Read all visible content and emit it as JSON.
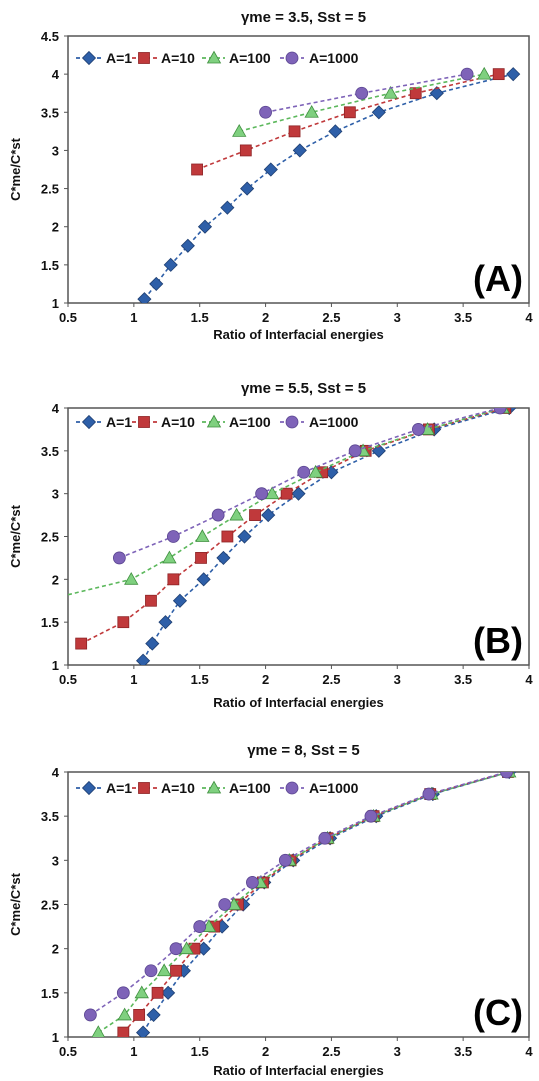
{
  "chart_data": [
    {
      "type": "line",
      "panel_label": "(A)",
      "title": "γme = 3.5, Sst = 5",
      "xlabel": "Ratio of Interfacial energies",
      "ylabel": "C*me/C*st",
      "xlim": [
        0.5,
        4
      ],
      "ylim": [
        1,
        4.5
      ],
      "xticks": [
        "0.5",
        "1",
        "1.5",
        "2",
        "2.5",
        "3",
        "3.5",
        "4"
      ],
      "yticks": [
        "1",
        "1.5",
        "2",
        "2.5",
        "3",
        "3.5",
        "4",
        "4.5"
      ],
      "grid": false,
      "legend": "top-left",
      "series": [
        {
          "name": "A=1",
          "color": "#2e5fa8",
          "marker": "diamond",
          "x": [
            1.08,
            1.17,
            1.28,
            1.41,
            1.54,
            1.71,
            1.86,
            2.04,
            2.26,
            2.53,
            2.86,
            3.3,
            3.88
          ],
          "y": [
            1.05,
            1.25,
            1.5,
            1.75,
            2.0,
            2.25,
            2.5,
            2.75,
            3.0,
            3.25,
            3.5,
            3.75,
            4.0
          ]
        },
        {
          "name": "A=10",
          "color": "#c0393b",
          "marker": "square",
          "x": [
            1.48,
            1.85,
            2.22,
            2.64,
            3.14,
            3.77
          ],
          "y": [
            2.75,
            3.0,
            3.25,
            3.5,
            3.75,
            4.0
          ]
        },
        {
          "name": "A=100",
          "color": "#5cb85c",
          "marker": "triangle",
          "x": [
            1.8,
            2.35,
            2.95,
            3.66
          ],
          "y": [
            3.25,
            3.5,
            3.75,
            4.0
          ]
        },
        {
          "name": "A=1000",
          "color": "#7e63b8",
          "marker": "circle",
          "x": [
            2.0,
            2.73,
            3.53
          ],
          "y": [
            3.5,
            3.75,
            4.0
          ]
        }
      ]
    },
    {
      "type": "line",
      "panel_label": "(B)",
      "title": "γme = 5.5, Sst = 5",
      "xlabel": "Ratio of Interfacial energies",
      "ylabel": "C*me/C*st",
      "xlim": [
        0.5,
        4
      ],
      "ylim": [
        1,
        4
      ],
      "xticks": [
        "0.5",
        "1",
        "1.5",
        "2",
        "2.5",
        "3",
        "3.5",
        "4"
      ],
      "yticks": [
        "1",
        "1.5",
        "2",
        "2.5",
        "3",
        "3.5",
        "4"
      ],
      "grid": false,
      "legend": "top-left",
      "series": [
        {
          "name": "A=1",
          "color": "#2e5fa8",
          "marker": "diamond",
          "x": [
            1.07,
            1.14,
            1.24,
            1.35,
            1.53,
            1.68,
            1.84,
            2.02,
            2.25,
            2.5,
            2.86,
            3.28,
            3.85
          ],
          "y": [
            1.05,
            1.25,
            1.5,
            1.75,
            2.0,
            2.25,
            2.5,
            2.75,
            3.0,
            3.25,
            3.5,
            3.75,
            4.0
          ]
        },
        {
          "name": "A=10",
          "color": "#c0393b",
          "marker": "square",
          "x": [
            0.6,
            0.92,
            1.13,
            1.3,
            1.51,
            1.71,
            1.92,
            2.16,
            2.43,
            2.76,
            3.24,
            3.82
          ],
          "y": [
            1.25,
            1.5,
            1.75,
            2.0,
            2.25,
            2.5,
            2.75,
            3.0,
            3.25,
            3.5,
            3.75,
            4.0
          ]
        },
        {
          "name": "A=100",
          "color": "#5cb85c",
          "marker": "triangle",
          "x": [
            0.98,
            1.27,
            1.52,
            1.78,
            2.05,
            2.38,
            2.74,
            3.23,
            3.8
          ],
          "y": [
            2.0,
            2.25,
            2.5,
            2.75,
            3.0,
            3.25,
            3.5,
            3.75,
            4.0
          ]
        },
        {
          "name": "A=1000",
          "color": "#7e63b8",
          "marker": "circle",
          "x": [
            0.89,
            1.3,
            1.64,
            1.97,
            2.29,
            2.68,
            3.16,
            3.78
          ],
          "y": [
            2.25,
            2.5,
            2.75,
            3.0,
            3.25,
            3.5,
            3.75,
            4.0
          ]
        }
      ]
    },
    {
      "type": "line",
      "panel_label": "(C)",
      "title": "γme = 8, Sst = 5",
      "xlabel": "Ratio of Interfacial energies",
      "ylabel": "C*me/C*st",
      "xlim": [
        0.5,
        4
      ],
      "ylim": [
        1,
        4
      ],
      "xticks": [
        "0.5",
        "1",
        "1.5",
        "2",
        "2.5",
        "3",
        "3.5",
        "4"
      ],
      "yticks": [
        "1",
        "1.5",
        "2",
        "2.5",
        "3",
        "3.5",
        "4"
      ],
      "grid": false,
      "legend": "top-left",
      "series": [
        {
          "name": "A=1",
          "color": "#2e5fa8",
          "marker": "diamond",
          "x": [
            1.07,
            1.15,
            1.26,
            1.38,
            1.53,
            1.67,
            1.83,
            1.99,
            2.21,
            2.49,
            2.84,
            3.27,
            3.85
          ],
          "y": [
            1.05,
            1.25,
            1.5,
            1.75,
            2.0,
            2.25,
            2.5,
            2.75,
            3.0,
            3.25,
            3.5,
            3.75,
            4.0
          ]
        },
        {
          "name": "A=10",
          "color": "#c0393b",
          "marker": "square",
          "x": [
            0.92,
            1.04,
            1.18,
            1.32,
            1.46,
            1.61,
            1.79,
            1.98,
            2.19,
            2.47,
            2.82,
            3.25,
            3.84
          ],
          "y": [
            1.05,
            1.25,
            1.5,
            1.75,
            2.0,
            2.25,
            2.5,
            2.75,
            3.0,
            3.25,
            3.5,
            3.75,
            4.0
          ]
        },
        {
          "name": "A=100",
          "color": "#5cb85c",
          "marker": "triangle",
          "x": [
            0.73,
            0.93,
            1.06,
            1.23,
            1.4,
            1.57,
            1.76,
            1.96,
            2.18,
            2.47,
            2.82,
            3.26,
            3.85
          ],
          "y": [
            1.05,
            1.25,
            1.5,
            1.75,
            2.0,
            2.25,
            2.5,
            2.75,
            3.0,
            3.25,
            3.5,
            3.75,
            4.0
          ]
        },
        {
          "name": "A=1000",
          "color": "#7e63b8",
          "marker": "circle",
          "x": [
            0.67,
            0.92,
            1.13,
            1.32,
            1.5,
            1.69,
            1.9,
            2.15,
            2.45,
            2.8,
            3.24,
            3.83
          ],
          "y": [
            1.25,
            1.5,
            1.75,
            2.0,
            2.25,
            2.5,
            2.75,
            3.0,
            3.25,
            3.5,
            3.75,
            4.0
          ]
        }
      ]
    }
  ]
}
